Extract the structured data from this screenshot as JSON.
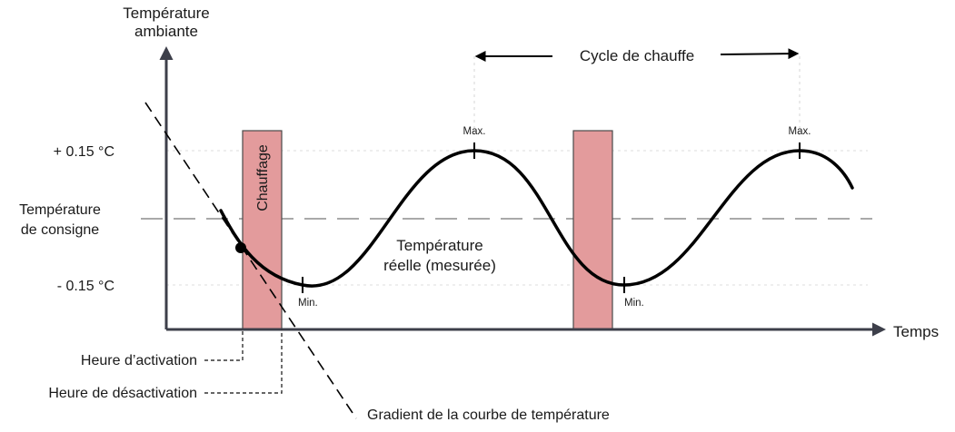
{
  "axes": {
    "y_label_line1": "Température",
    "y_label_line2": "ambiante",
    "x_label": "Temps"
  },
  "levels": {
    "upper": "+ 0.15 °C",
    "setpoint_line1": "Température",
    "setpoint_line2": "de consigne",
    "lower": "- 0.15 °C"
  },
  "cycle": {
    "label": "Cycle de chauffe"
  },
  "markers": {
    "max_1": "Max.",
    "max_2": "Max.",
    "min_1": "Min.",
    "min_2": "Min."
  },
  "heating": {
    "label": "Chauffage"
  },
  "curve": {
    "label_line1": "Température",
    "label_line2": "réelle (mesurée)"
  },
  "annotations": {
    "activation": "Heure d’activation",
    "deactivation": "Heure de désactivation",
    "gradient": "Gradient de la courbe de température"
  },
  "colors": {
    "heating_fill": "#e39b9c",
    "axis": "#3d3f4a",
    "curve": "#000000",
    "setpoint_line": "#a9a9a9"
  }
}
